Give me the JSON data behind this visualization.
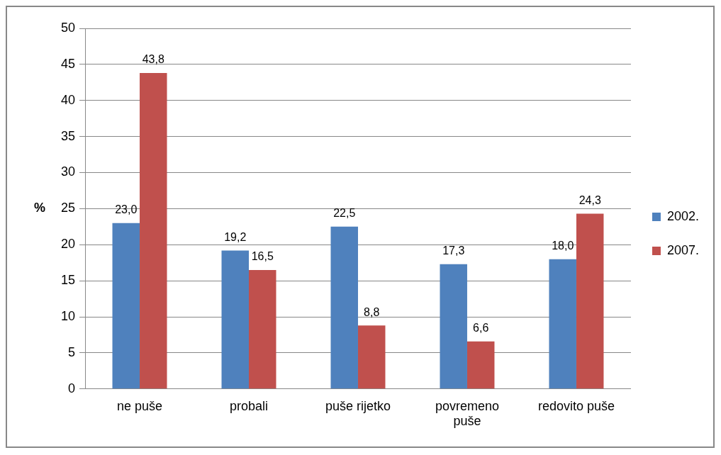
{
  "chart_data": {
    "type": "bar",
    "ylabel": "%",
    "categories": [
      "ne puše",
      "probali",
      "puše rijetko",
      "povremeno puše",
      "redovito puše"
    ],
    "series": [
      {
        "name": "2002.",
        "color": "#4f81bd",
        "values": [
          23.0,
          19.2,
          22.5,
          17.3,
          18.0
        ],
        "value_labels": [
          "23,0",
          "19,2",
          "22,5",
          "17,3",
          "18,0"
        ]
      },
      {
        "name": "2007.",
        "color": "#c0504d",
        "values": [
          43.8,
          16.5,
          8.8,
          6.6,
          24.3
        ],
        "value_labels": [
          "43,8",
          "16,5",
          "8,8",
          "6,6",
          "24,3"
        ]
      }
    ],
    "ylim": [
      0,
      50
    ],
    "yticks": [
      0,
      5,
      10,
      15,
      20,
      25,
      30,
      35,
      40,
      45,
      50
    ],
    "grid": "y",
    "legend": "right"
  }
}
